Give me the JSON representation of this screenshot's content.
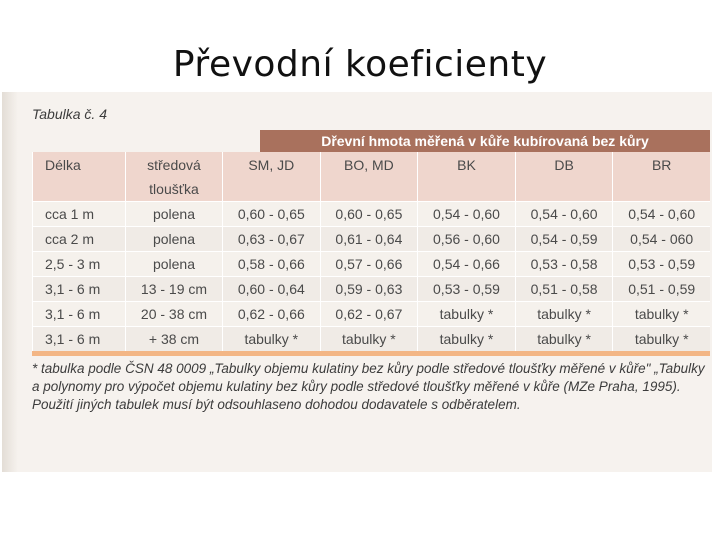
{
  "slide": {
    "title": "Převodní koeficienty"
  },
  "scan": {
    "caption": "Tabulka č. 4",
    "header_band": "Dřevní hmota měřená v kůře kubírovaná bez kůry",
    "columns": {
      "length": "Délka",
      "thickness_line1": "středová",
      "thickness_line2": "tloušťka",
      "species": [
        "SM, JD",
        "BO, MD",
        "BK",
        "DB",
        "BR"
      ]
    },
    "rows": [
      {
        "length": "cca 1 m",
        "thickness": "polena",
        "values": [
          "0,60 - 0,65",
          "0,60 - 0,65",
          "0,54 - 0,60",
          "0,54 - 0,60",
          "0,54 - 0,60"
        ]
      },
      {
        "length": "cca 2 m",
        "thickness": "polena",
        "values": [
          "0,63 - 0,67",
          "0,61 - 0,64",
          "0,56 - 0,60",
          "0,54 - 0,59",
          "0,54 - 060"
        ]
      },
      {
        "length": "2,5 - 3 m",
        "thickness": "polena",
        "values": [
          "0,58 - 0,66",
          "0,57 - 0,66",
          "0,54 - 0,66",
          "0,53 - 0,58",
          "0,53 - 0,59"
        ]
      },
      {
        "length": "3,1 - 6 m",
        "thickness": "13 - 19 cm",
        "values": [
          "0,60 - 0,64",
          "0,59 - 0,63",
          "0,53 - 0,59",
          "0,51 - 0,58",
          "0,51 - 0,59"
        ]
      },
      {
        "length": "3,1 - 6 m",
        "thickness": "20 - 38 cm",
        "values": [
          "0,62 - 0,66",
          "0,62 - 0,67",
          "tabulky *",
          "tabulky *",
          "tabulky *"
        ]
      },
      {
        "length": "3,1 - 6 m",
        "thickness": "+ 38 cm",
        "values": [
          "tabulky *",
          "tabulky *",
          "tabulky *",
          "tabulky *",
          "tabulky *"
        ]
      }
    ],
    "footnote": "* tabulka podle ČSN 48 0009 „Tabulky objemu kulatiny bez kůry podle středové tloušťky měřené v kůře\" „Tabulky a polynomy pro výpočet objemu kulatiny bez kůry podle středové tloušťky měřené v kůře (MZe Praha, 1995). Použití jiných tabulek musí být odsouhlaseno dohodou dodavatele s odběratelem.",
    "colors": {
      "header_band": "#a9715d",
      "header_rows": "#efd6cd",
      "rule": "#f3b685"
    }
  }
}
